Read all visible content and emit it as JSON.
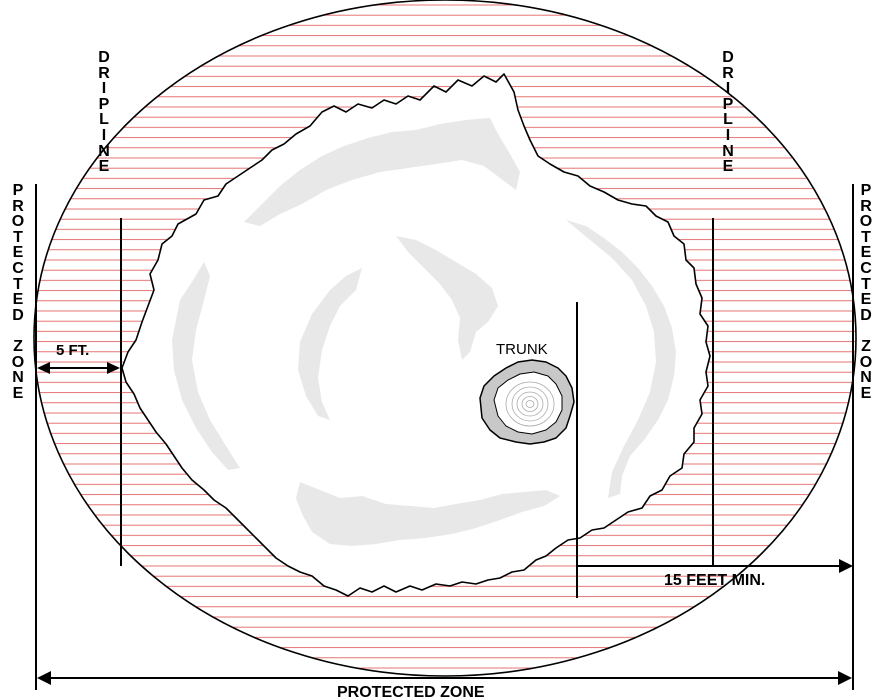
{
  "labels": {
    "dripline": "DRIPLINE",
    "protected_zone": "PROTECTED ZONE",
    "trunk": "TRUNK",
    "five_ft": "5 FT.",
    "fifteen_feet_min": "15 FEET MIN."
  },
  "colors": {
    "hatch_lines": "#e05050",
    "canopy_fill": "#ffffff",
    "canopy_shadow": "#e8e8e8",
    "trunk_bark": "#c8c8c8",
    "outline": "#000000"
  }
}
